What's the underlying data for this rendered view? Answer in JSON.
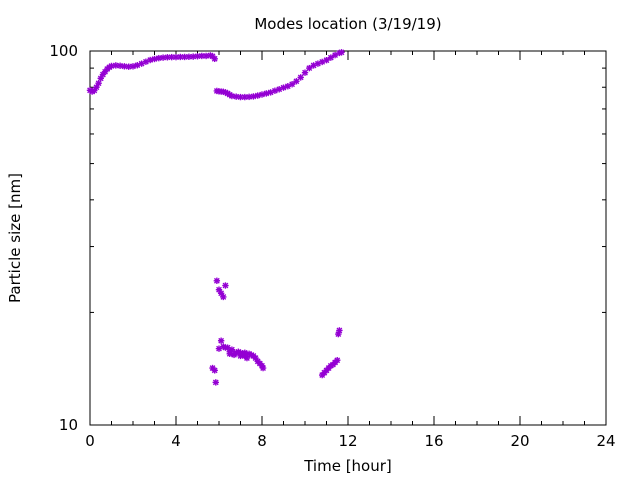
{
  "colors": {
    "series": "#9400d3",
    "axis": "#000000",
    "background": "#ffffff"
  },
  "chart_data": {
    "type": "scatter",
    "title": "Modes location (3/19/19)",
    "xlabel": "Time [hour]",
    "ylabel": "Particle size [nm]",
    "xlim": [
      0,
      24
    ],
    "ylim": [
      10,
      100
    ],
    "yscale": "log",
    "grid": false,
    "xticks": [
      0,
      4,
      8,
      12,
      16,
      20,
      24
    ],
    "xtick_labels": [
      "0",
      "4",
      "8",
      "12",
      "16",
      "20",
      "24"
    ],
    "yticks": [
      10,
      100
    ],
    "ytick_labels": [
      "10",
      "100"
    ],
    "series": [
      {
        "marker": "star",
        "points": [
          [
            0.0,
            78.5
          ],
          [
            0.1,
            77.9
          ],
          [
            0.2,
            78.4
          ],
          [
            0.3,
            80.0
          ],
          [
            0.4,
            82.0
          ],
          [
            0.5,
            84.5
          ],
          [
            0.6,
            86.5
          ],
          [
            0.7,
            88.0
          ],
          [
            0.8,
            89.5
          ],
          [
            0.9,
            90.5
          ],
          [
            1.0,
            91.2
          ],
          [
            1.2,
            91.5
          ],
          [
            1.4,
            91.3
          ],
          [
            1.6,
            91.0
          ],
          [
            1.8,
            90.8
          ],
          [
            2.0,
            91.0
          ],
          [
            2.2,
            91.6
          ],
          [
            2.4,
            92.5
          ],
          [
            2.6,
            93.6
          ],
          [
            2.8,
            94.6
          ],
          [
            3.0,
            95.2
          ],
          [
            3.2,
            95.7
          ],
          [
            3.4,
            96.0
          ],
          [
            3.6,
            96.2
          ],
          [
            3.8,
            96.3
          ],
          [
            4.0,
            96.3
          ],
          [
            4.2,
            96.4
          ],
          [
            4.4,
            96.4
          ],
          [
            4.6,
            96.5
          ],
          [
            4.8,
            96.6
          ],
          [
            5.0,
            96.8
          ],
          [
            5.2,
            97.0
          ],
          [
            5.4,
            97.0
          ],
          [
            5.6,
            97.3
          ],
          [
            5.7,
            96.8
          ],
          [
            5.8,
            95.3
          ],
          [
            5.9,
            78.2
          ],
          [
            6.0,
            78.0
          ],
          [
            6.1,
            77.9
          ],
          [
            6.2,
            77.8
          ],
          [
            6.3,
            77.5
          ],
          [
            6.4,
            77.0
          ],
          [
            6.5,
            76.4
          ],
          [
            6.6,
            75.8
          ],
          [
            6.8,
            75.5
          ],
          [
            7.0,
            75.3
          ],
          [
            7.2,
            75.3
          ],
          [
            7.4,
            75.4
          ],
          [
            7.6,
            75.6
          ],
          [
            7.8,
            76.0
          ],
          [
            8.0,
            76.5
          ],
          [
            8.2,
            77.0
          ],
          [
            8.4,
            77.5
          ],
          [
            8.6,
            78.3
          ],
          [
            8.8,
            79.0
          ],
          [
            9.0,
            79.8
          ],
          [
            9.2,
            80.5
          ],
          [
            9.4,
            81.5
          ],
          [
            9.6,
            83.0
          ],
          [
            9.8,
            85.0
          ],
          [
            10.0,
            87.5
          ],
          [
            10.2,
            90.0
          ],
          [
            10.4,
            91.5
          ],
          [
            10.6,
            92.5
          ],
          [
            10.8,
            93.5
          ],
          [
            11.0,
            94.5
          ],
          [
            11.2,
            96.0
          ],
          [
            11.4,
            97.5
          ],
          [
            11.6,
            98.8
          ],
          [
            11.7,
            99.2
          ],
          [
            5.7,
            14.2
          ],
          [
            5.8,
            14.0
          ],
          [
            5.85,
            13.0
          ],
          [
            5.9,
            24.3
          ],
          [
            6.0,
            23.0
          ],
          [
            6.1,
            22.5
          ],
          [
            6.1,
            16.8
          ],
          [
            6.2,
            22.0
          ],
          [
            6.3,
            23.6
          ],
          [
            6.0,
            16.0
          ],
          [
            6.2,
            16.2
          ],
          [
            6.3,
            16.1
          ],
          [
            6.4,
            16.1
          ],
          [
            6.5,
            15.7
          ],
          [
            6.5,
            15.5
          ],
          [
            6.6,
            15.9
          ],
          [
            6.7,
            15.4
          ],
          [
            6.8,
            15.6
          ],
          [
            6.9,
            15.7
          ],
          [
            7.0,
            15.6
          ],
          [
            7.0,
            15.3
          ],
          [
            7.1,
            15.5
          ],
          [
            7.2,
            15.3
          ],
          [
            7.2,
            15.6
          ],
          [
            7.3,
            15.1
          ],
          [
            7.4,
            15.5
          ],
          [
            7.5,
            15.4
          ],
          [
            7.6,
            15.3
          ],
          [
            7.7,
            15.1
          ],
          [
            7.8,
            14.8
          ],
          [
            7.9,
            14.6
          ],
          [
            8.0,
            14.4
          ],
          [
            8.05,
            14.2
          ],
          [
            10.8,
            13.6
          ],
          [
            10.9,
            13.8
          ],
          [
            11.0,
            14.0
          ],
          [
            11.1,
            14.2
          ],
          [
            11.2,
            14.4
          ],
          [
            11.3,
            14.5
          ],
          [
            11.4,
            14.7
          ],
          [
            11.5,
            14.9
          ],
          [
            11.55,
            17.5
          ],
          [
            11.6,
            17.9
          ]
        ]
      }
    ]
  }
}
